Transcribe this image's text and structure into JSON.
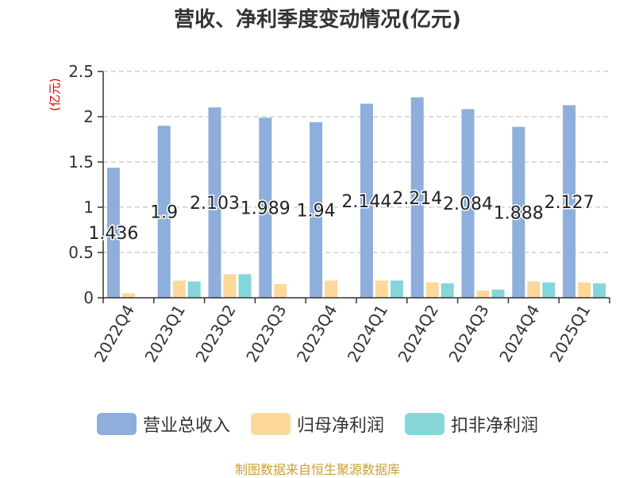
{
  "chart_data": {
    "type": "bar",
    "title": "营收、净利季度变动情况(亿元)",
    "unit_label": "(亿元)",
    "categories": [
      "2022Q4",
      "2023Q1",
      "2023Q2",
      "2023Q3",
      "2023Q4",
      "2024Q1",
      "2024Q2",
      "2024Q3",
      "2024Q4",
      "2025Q1"
    ],
    "series": [
      {
        "name": "营业总收入",
        "color": "#8eaedb",
        "values": [
          1.436,
          1.9,
          2.103,
          1.989,
          1.94,
          2.144,
          2.214,
          2.084,
          1.888,
          2.127
        ],
        "labels": [
          "1.436",
          "1.9",
          "2.103",
          "1.989",
          "1.94",
          "2.144",
          "2.214",
          "2.084",
          "1.888",
          "2.127"
        ]
      },
      {
        "name": "归母净利润",
        "color": "#fdd89b",
        "values": [
          0.05,
          0.19,
          0.26,
          0.15,
          0.19,
          0.19,
          0.17,
          0.08,
          0.18,
          0.17
        ]
      },
      {
        "name": "扣非净利润",
        "color": "#86d6d9",
        "values": [
          null,
          0.18,
          0.26,
          null,
          null,
          0.19,
          0.16,
          0.09,
          0.17,
          0.16
        ]
      }
    ],
    "y_ticks": [
      "0",
      "0.5",
      "1",
      "1.5",
      "2",
      "2.5"
    ],
    "ylim": [
      0,
      2.5
    ],
    "grid": true,
    "legend_position": "bottom"
  },
  "source": "制图数据来自恒生聚源数据库"
}
